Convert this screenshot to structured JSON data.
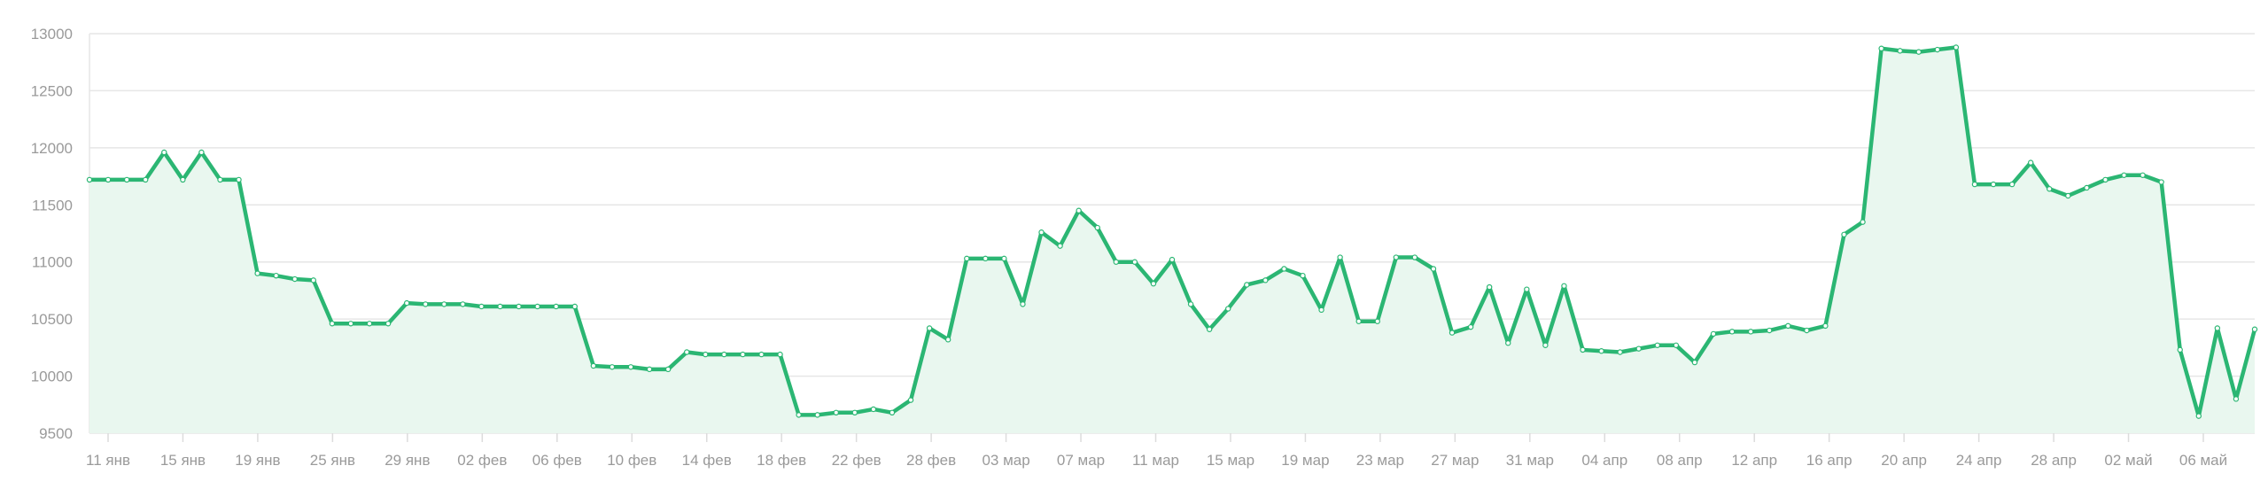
{
  "colors": {
    "line": "#2bb673",
    "area": "#e9f7ef",
    "marker_fill": "#ffffff"
  },
  "chart_data": {
    "type": "line",
    "ylim": [
      9500,
      13000
    ],
    "y_ticks": [
      9500,
      10000,
      10500,
      11000,
      11500,
      12000,
      12500,
      13000
    ],
    "grid": true,
    "x_tick_labels": [
      "11 янв",
      "15 янв",
      "19 янв",
      "25 янв",
      "29 янв",
      "02 фев",
      "06 фев",
      "10 фев",
      "14 фев",
      "18 фев",
      "22 фев",
      "28 фев",
      "03 мар",
      "07 мар",
      "11 мар",
      "15 мар",
      "19 мар",
      "23 мар",
      "27 мар",
      "31 мар",
      "04 апр",
      "08 апр",
      "12 апр",
      "16 апр",
      "20 апр",
      "24 апр",
      "28 апр",
      "02 май",
      "06 май"
    ],
    "series": [
      {
        "values": [
          11720,
          11720,
          11720,
          11720,
          11960,
          11720,
          11960,
          11720,
          11720,
          10900,
          10880,
          10850,
          10840,
          10460,
          10460,
          10460,
          10460,
          10640,
          10630,
          10630,
          10630,
          10610,
          10610,
          10610,
          10610,
          10610,
          10610,
          10090,
          10080,
          10080,
          10060,
          10060,
          10210,
          10190,
          10190,
          10190,
          10190,
          10190,
          9660,
          9660,
          9680,
          9680,
          9710,
          9680,
          9790,
          10420,
          10320,
          11030,
          11030,
          11030,
          10630,
          11260,
          11140,
          11450,
          11300,
          11000,
          11000,
          10810,
          11020,
          10630,
          10410,
          10590,
          10800,
          10840,
          10940,
          10880,
          10580,
          11040,
          10480,
          10480,
          11040,
          11040,
          10940,
          10380,
          10430,
          10780,
          10290,
          10760,
          10270,
          10790,
          10230,
          10220,
          10210,
          10240,
          10270,
          10270,
          10120,
          10370,
          10390,
          10390,
          10400,
          10440,
          10400,
          10440,
          11240,
          11350,
          12870,
          12850,
          12840,
          12860,
          12880,
          11680,
          11680,
          11680,
          11870,
          11640,
          11580,
          11650,
          11720,
          11760,
          11760,
          11700,
          10230,
          9650,
          10420,
          9800,
          10410
        ]
      }
    ]
  }
}
